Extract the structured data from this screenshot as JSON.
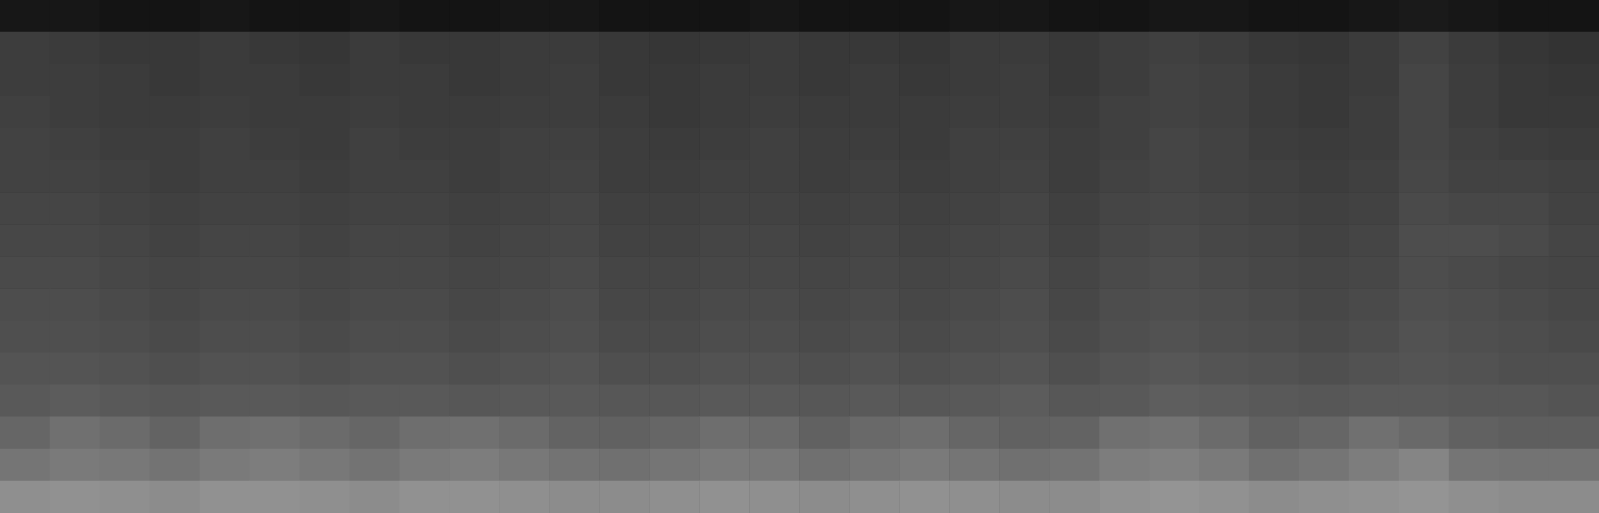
{
  "chart_data": {
    "type": "heatmap",
    "cells": [
      [
        9,
        9,
        8,
        8,
        9,
        8,
        8,
        9,
        8,
        8,
        9,
        9,
        8,
        8,
        8,
        9,
        8,
        8,
        8,
        9,
        9,
        8,
        8,
        9,
        9,
        8,
        8,
        9,
        10,
        9,
        8,
        8
      ],
      [
        24,
        23,
        22,
        22,
        23,
        22,
        21,
        23,
        22,
        22,
        23,
        23,
        22,
        21,
        22,
        23,
        22,
        22,
        21,
        23,
        23,
        22,
        24,
        25,
        24,
        22,
        21,
        23,
        26,
        23,
        21,
        20
      ],
      [
        24,
        24,
        23,
        22,
        23,
        23,
        22,
        23,
        23,
        22,
        23,
        24,
        22,
        22,
        23,
        23,
        22,
        23,
        22,
        23,
        24,
        22,
        24,
        26,
        25,
        23,
        22,
        23,
        27,
        24,
        22,
        21
      ],
      [
        25,
        24,
        23,
        23,
        24,
        23,
        23,
        24,
        23,
        23,
        24,
        24,
        23,
        22,
        23,
        24,
        23,
        23,
        23,
        24,
        24,
        23,
        25,
        26,
        25,
        23,
        22,
        24,
        27,
        24,
        22,
        22
      ],
      [
        26,
        25,
        24,
        24,
        25,
        24,
        23,
        25,
        24,
        24,
        25,
        25,
        24,
        23,
        24,
        25,
        24,
        24,
        23,
        25,
        25,
        24,
        25,
        27,
        26,
        24,
        23,
        24,
        27,
        25,
        24,
        23
      ],
      [
        26,
        26,
        25,
        24,
        25,
        25,
        24,
        25,
        25,
        24,
        25,
        26,
        24,
        24,
        25,
        25,
        24,
        25,
        24,
        25,
        26,
        24,
        26,
        27,
        26,
        25,
        24,
        25,
        28,
        26,
        26,
        25
      ],
      [
        27,
        27,
        26,
        25,
        26,
        26,
        25,
        26,
        26,
        25,
        26,
        27,
        25,
        25,
        26,
        26,
        25,
        26,
        25,
        26,
        27,
        25,
        27,
        28,
        27,
        26,
        25,
        26,
        29,
        28,
        28,
        26
      ],
      [
        28,
        28,
        27,
        26,
        27,
        27,
        26,
        27,
        27,
        26,
        27,
        28,
        26,
        26,
        27,
        27,
        26,
        27,
        26,
        27,
        28,
        26,
        28,
        29,
        28,
        27,
        26,
        27,
        30,
        30,
        29,
        27
      ],
      [
        29,
        29,
        28,
        27,
        28,
        28,
        27,
        28,
        28,
        27,
        28,
        29,
        27,
        27,
        28,
        28,
        27,
        28,
        27,
        28,
        29,
        27,
        29,
        30,
        29,
        28,
        27,
        28,
        30,
        29,
        28,
        27
      ],
      [
        30,
        30,
        29,
        28,
        29,
        29,
        28,
        29,
        29,
        28,
        29,
        30,
        28,
        28,
        29,
        29,
        28,
        29,
        28,
        29,
        30,
        28,
        30,
        31,
        30,
        29,
        28,
        29,
        31,
        30,
        29,
        28
      ],
      [
        31,
        31,
        30,
        29,
        30,
        30,
        29,
        30,
        30,
        29,
        30,
        31,
        29,
        29,
        30,
        30,
        29,
        30,
        29,
        30,
        31,
        29,
        31,
        32,
        31,
        30,
        29,
        30,
        32,
        31,
        30,
        29
      ],
      [
        33,
        33,
        32,
        31,
        32,
        32,
        31,
        32,
        32,
        31,
        32,
        33,
        31,
        31,
        32,
        32,
        31,
        32,
        31,
        32,
        33,
        31,
        33,
        34,
        33,
        32,
        31,
        32,
        33,
        32,
        31,
        31
      ],
      [
        35,
        36,
        35,
        34,
        35,
        35,
        34,
        35,
        35,
        34,
        35,
        35,
        34,
        34,
        35,
        35,
        34,
        35,
        34,
        35,
        36,
        34,
        35,
        37,
        36,
        35,
        34,
        35,
        35,
        34,
        34,
        33
      ],
      [
        40,
        44,
        42,
        39,
        43,
        44,
        42,
        40,
        43,
        44,
        42,
        39,
        38,
        40,
        43,
        42,
        38,
        41,
        43,
        40,
        38,
        39,
        44,
        45,
        42,
        38,
        40,
        44,
        41,
        38,
        37,
        37
      ],
      [
        46,
        48,
        47,
        45,
        48,
        49,
        47,
        45,
        48,
        49,
        47,
        45,
        44,
        46,
        48,
        47,
        44,
        46,
        48,
        46,
        44,
        45,
        49,
        50,
        48,
        44,
        46,
        49,
        52,
        46,
        45,
        45
      ],
      [
        56,
        57,
        56,
        55,
        57,
        57,
        56,
        55,
        57,
        57,
        56,
        55,
        55,
        56,
        57,
        56,
        55,
        56,
        57,
        56,
        55,
        55,
        57,
        58,
        57,
        55,
        56,
        57,
        58,
        56,
        55,
        55
      ]
    ],
    "zlim": [
      0,
      100
    ],
    "color": [
      "#000000",
      "#ffffff"
    ],
    "tick_labels": false
  }
}
